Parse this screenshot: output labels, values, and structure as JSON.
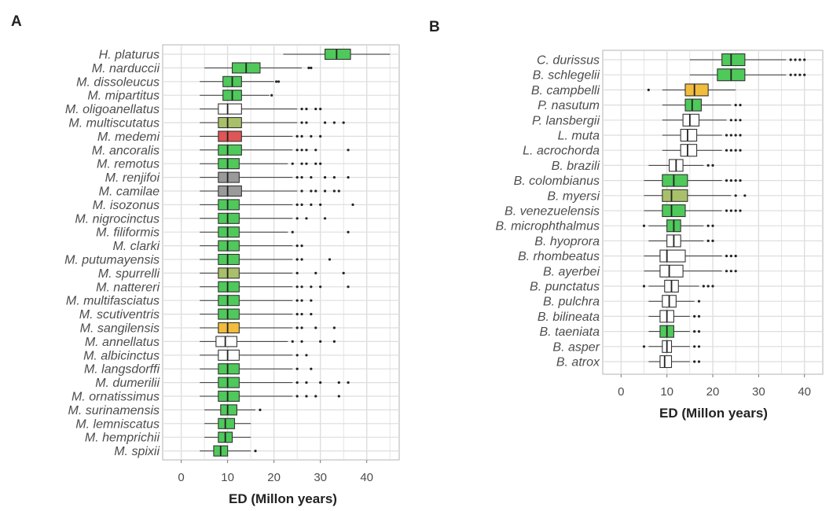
{
  "colors": {
    "green": "#4ec95a",
    "white": "#ffffff",
    "olive": "#a9c06a",
    "red": "#e05555",
    "gray": "#9a9a9a",
    "orange": "#f2bd3c",
    "grid": "#dedede",
    "border": "#b3b3b3",
    "text": "#4d4d4d"
  },
  "chart_data": [
    {
      "type": "boxplot",
      "panel_label": "A",
      "xlabel": "ED (Millon years)",
      "ylabel": "",
      "xlim": [
        -4,
        47
      ],
      "xticks": [
        0,
        10,
        20,
        30,
        40
      ],
      "grid": true,
      "species": [
        {
          "name": "H. platurus",
          "q1": 31,
          "median": 33.5,
          "q3": 36.5,
          "wlo": 22,
          "whi": 45,
          "outliers": [],
          "fill": "green"
        },
        {
          "name": "M. narduccii",
          "q1": 11,
          "median": 14,
          "q3": 17,
          "wlo": 5,
          "whi": 26,
          "outliers": [
            27.5,
            28
          ],
          "fill": "green"
        },
        {
          "name": "M. dissoleucus",
          "q1": 9,
          "median": 11,
          "q3": 13,
          "wlo": 4,
          "whi": 20,
          "outliers": [
            20.5,
            21
          ],
          "fill": "green"
        },
        {
          "name": "M. mipartitus",
          "q1": 9,
          "median": 11,
          "q3": 13,
          "wlo": 4,
          "whi": 19,
          "outliers": [
            19.5
          ],
          "fill": "green"
        },
        {
          "name": "M. oligoanellatus",
          "q1": 8,
          "median": 10,
          "q3": 13,
          "wlo": 4,
          "whi": 25,
          "outliers": [
            26,
            27,
            29,
            30
          ],
          "fill": "white"
        },
        {
          "name": "M. multiscutatus",
          "q1": 8,
          "median": 10,
          "q3": 13,
          "wlo": 4,
          "whi": 25,
          "outliers": [
            26,
            27,
            31,
            33,
            35
          ],
          "fill": "olive"
        },
        {
          "name": "M. medemi",
          "q1": 8,
          "median": 10,
          "q3": 13,
          "wlo": 4,
          "whi": 24,
          "outliers": [
            25,
            26,
            28,
            30
          ],
          "fill": "red"
        },
        {
          "name": "M. ancoralis",
          "q1": 8,
          "median": 10,
          "q3": 13,
          "wlo": 4,
          "whi": 24,
          "outliers": [
            25,
            26,
            27,
            29,
            36
          ],
          "fill": "green"
        },
        {
          "name": "M. remotus",
          "q1": 8,
          "median": 10,
          "q3": 12.5,
          "wlo": 4,
          "whi": 23,
          "outliers": [
            24,
            26,
            27,
            29,
            30
          ],
          "fill": "green"
        },
        {
          "name": "M. renjifoi",
          "q1": 8,
          "median": 10,
          "q3": 12.5,
          "wlo": 4,
          "whi": 24,
          "outliers": [
            25,
            26,
            28,
            31,
            33,
            36
          ],
          "fill": "gray"
        },
        {
          "name": "M. camilae",
          "q1": 8,
          "median": 10,
          "q3": 13,
          "wlo": 4,
          "whi": 25,
          "outliers": [
            26,
            28,
            29,
            31,
            33,
            34
          ],
          "fill": "gray"
        },
        {
          "name": "M. isozonus",
          "q1": 8,
          "median": 10,
          "q3": 12.5,
          "wlo": 4,
          "whi": 24,
          "outliers": [
            25,
            26,
            28,
            30,
            37
          ],
          "fill": "green"
        },
        {
          "name": "M. nigrocinctus",
          "q1": 8,
          "median": 10,
          "q3": 12.5,
          "wlo": 4,
          "whi": 24,
          "outliers": [
            25,
            27,
            31
          ],
          "fill": "green"
        },
        {
          "name": "M. filiformis",
          "q1": 8,
          "median": 10,
          "q3": 12.5,
          "wlo": 4,
          "whi": 23,
          "outliers": [
            24,
            36
          ],
          "fill": "green"
        },
        {
          "name": "M. clarki",
          "q1": 8,
          "median": 10,
          "q3": 12.5,
          "wlo": 4,
          "whi": 24,
          "outliers": [
            25,
            26
          ],
          "fill": "green"
        },
        {
          "name": "M. putumayensis",
          "q1": 8,
          "median": 10,
          "q3": 12.5,
          "wlo": 4,
          "whi": 24,
          "outliers": [
            25,
            26,
            32
          ],
          "fill": "green"
        },
        {
          "name": "M. spurrelli",
          "q1": 8,
          "median": 10,
          "q3": 12.5,
          "wlo": 4,
          "whi": 24,
          "outliers": [
            25,
            29,
            35
          ],
          "fill": "olive"
        },
        {
          "name": "M. nattereri",
          "q1": 8,
          "median": 10,
          "q3": 12.5,
          "wlo": 4,
          "whi": 24,
          "outliers": [
            25,
            26,
            28,
            30,
            36
          ],
          "fill": "green"
        },
        {
          "name": "M. multifasciatus",
          "q1": 8,
          "median": 10,
          "q3": 12.5,
          "wlo": 4,
          "whi": 24,
          "outliers": [
            25,
            26,
            28
          ],
          "fill": "green"
        },
        {
          "name": "M. scutiventris",
          "q1": 8,
          "median": 10,
          "q3": 12.5,
          "wlo": 4,
          "whi": 24,
          "outliers": [
            25,
            26,
            28
          ],
          "fill": "green"
        },
        {
          "name": "M. sangilensis",
          "q1": 8,
          "median": 10,
          "q3": 12.5,
          "wlo": 4,
          "whi": 24,
          "outliers": [
            25,
            26,
            29,
            33
          ],
          "fill": "orange"
        },
        {
          "name": "M. annellatus",
          "q1": 7.5,
          "median": 9.5,
          "q3": 12,
          "wlo": 4,
          "whi": 23,
          "outliers": [
            24,
            26,
            30,
            33
          ],
          "fill": "white"
        },
        {
          "name": "M. albicinctus",
          "q1": 8,
          "median": 10,
          "q3": 12.5,
          "wlo": 4,
          "whi": 24,
          "outliers": [
            25,
            27
          ],
          "fill": "white"
        },
        {
          "name": "M. langsdorffi",
          "q1": 8,
          "median": 10,
          "q3": 12.5,
          "wlo": 4,
          "whi": 24,
          "outliers": [
            25,
            28
          ],
          "fill": "green"
        },
        {
          "name": "M. dumerilii",
          "q1": 8,
          "median": 10,
          "q3": 12.5,
          "wlo": 4,
          "whi": 24,
          "outliers": [
            25,
            27,
            30,
            34,
            36
          ],
          "fill": "green"
        },
        {
          "name": "M. ornatissimus",
          "q1": 8,
          "median": 10,
          "q3": 12.5,
          "wlo": 4,
          "whi": 24,
          "outliers": [
            25,
            27,
            29,
            34
          ],
          "fill": "green"
        },
        {
          "name": "M. surinamensis",
          "q1": 8.5,
          "median": 10,
          "q3": 12,
          "wlo": 5,
          "whi": 16,
          "outliers": [
            17
          ],
          "fill": "green"
        },
        {
          "name": "M. lemniscatus",
          "q1": 8,
          "median": 9.5,
          "q3": 11.5,
          "wlo": 5,
          "whi": 15,
          "outliers": [],
          "fill": "green"
        },
        {
          "name": "M. hemprichii",
          "q1": 8,
          "median": 9.5,
          "q3": 11,
          "wlo": 5,
          "whi": 15,
          "outliers": [],
          "fill": "green"
        },
        {
          "name": "M. spixii",
          "q1": 7,
          "median": 8.5,
          "q3": 10,
          "wlo": 4,
          "whi": 15,
          "outliers": [
            16
          ],
          "fill": "green"
        }
      ]
    },
    {
      "type": "boxplot",
      "panel_label": "B",
      "xlabel": "ED (Millon years)",
      "ylabel": "",
      "xlim": [
        -4,
        44
      ],
      "xticks": [
        0,
        10,
        20,
        30,
        40
      ],
      "grid": true,
      "species": [
        {
          "name": "C. durissus",
          "q1": 22,
          "median": 24,
          "q3": 27,
          "wlo": 15,
          "whi": 36,
          "outliers": [
            37,
            38,
            39,
            40
          ],
          "fill": "green"
        },
        {
          "name": "B. schlegelii",
          "q1": 21,
          "median": 24,
          "q3": 27,
          "wlo": 15,
          "whi": 36,
          "outliers": [
            37,
            38,
            39,
            40
          ],
          "fill": "green"
        },
        {
          "name": "B. campbelli",
          "q1": 14,
          "median": 16,
          "q3": 19,
          "wlo": 9,
          "whi": 25,
          "outliers": [
            6
          ],
          "fill": "orange"
        },
        {
          "name": "P. nasutum",
          "q1": 14,
          "median": 15.5,
          "q3": 17.5,
          "wlo": 9,
          "whi": 24,
          "outliers": [
            25,
            26
          ],
          "fill": "green"
        },
        {
          "name": "P. lansbergii",
          "q1": 13.5,
          "median": 15,
          "q3": 17,
          "wlo": 9,
          "whi": 23,
          "outliers": [
            24,
            25,
            26
          ],
          "fill": "white"
        },
        {
          "name": "L. muta",
          "q1": 13,
          "median": 14.5,
          "q3": 16.5,
          "wlo": 9,
          "whi": 22,
          "outliers": [
            23,
            24,
            25,
            26
          ],
          "fill": "white"
        },
        {
          "name": "L. acrochorda",
          "q1": 13,
          "median": 14.5,
          "q3": 16.5,
          "wlo": 9,
          "whi": 22,
          "outliers": [
            23,
            24,
            25,
            26
          ],
          "fill": "white"
        },
        {
          "name": "B. brazili",
          "q1": 10.5,
          "median": 12,
          "q3": 13.5,
          "wlo": 6,
          "whi": 18,
          "outliers": [
            19,
            20
          ],
          "fill": "white"
        },
        {
          "name": "B. colombianus",
          "q1": 9,
          "median": 11.5,
          "q3": 14.5,
          "wlo": 5,
          "whi": 22,
          "outliers": [
            23,
            24,
            25,
            26
          ],
          "fill": "green"
        },
        {
          "name": "B. myersi",
          "q1": 9,
          "median": 11,
          "q3": 14.5,
          "wlo": 5,
          "whi": 24,
          "outliers": [
            25,
            27
          ],
          "fill": "olive"
        },
        {
          "name": "B. venezuelensis",
          "q1": 9,
          "median": 11,
          "q3": 14,
          "wlo": 5,
          "whi": 22,
          "outliers": [
            23,
            24,
            25,
            26
          ],
          "fill": "green"
        },
        {
          "name": "B. microphthalmus",
          "q1": 10,
          "median": 11.5,
          "q3": 13,
          "wlo": 6,
          "whi": 18,
          "outliers": [
            5,
            19,
            20
          ],
          "fill": "green"
        },
        {
          "name": "B. hyoprora",
          "q1": 10,
          "median": 11.5,
          "q3": 13,
          "wlo": 6,
          "whi": 18,
          "outliers": [
            19,
            20
          ],
          "fill": "white"
        },
        {
          "name": "B. rhombeatus",
          "q1": 8.5,
          "median": 10,
          "q3": 14,
          "wlo": 5,
          "whi": 22,
          "outliers": [
            23,
            24,
            25
          ],
          "fill": "white"
        },
        {
          "name": "B. ayerbei",
          "q1": 8.5,
          "median": 10.5,
          "q3": 13.5,
          "wlo": 5,
          "whi": 22,
          "outliers": [
            23,
            24,
            25
          ],
          "fill": "white"
        },
        {
          "name": "B. punctatus",
          "q1": 9.5,
          "median": 11,
          "q3": 12.5,
          "wlo": 6,
          "whi": 17,
          "outliers": [
            5,
            18,
            19,
            20
          ],
          "fill": "white"
        },
        {
          "name": "B. pulchra",
          "q1": 9,
          "median": 10.5,
          "q3": 12,
          "wlo": 6,
          "whi": 16,
          "outliers": [
            17
          ],
          "fill": "white"
        },
        {
          "name": "B. bilineata",
          "q1": 8.5,
          "median": 10,
          "q3": 11.5,
          "wlo": 6,
          "whi": 15,
          "outliers": [
            16,
            17
          ],
          "fill": "white"
        },
        {
          "name": "B. taeniata",
          "q1": 8.5,
          "median": 10,
          "q3": 11.5,
          "wlo": 6,
          "whi": 15,
          "outliers": [
            16,
            17
          ],
          "fill": "green"
        },
        {
          "name": "B. asper",
          "q1": 9,
          "median": 10,
          "q3": 11,
          "wlo": 6,
          "whi": 15,
          "outliers": [
            5,
            16,
            17
          ],
          "fill": "white"
        },
        {
          "name": "B. atrox",
          "q1": 8.5,
          "median": 9.5,
          "q3": 11,
          "wlo": 6,
          "whi": 15,
          "outliers": [
            16,
            17
          ],
          "fill": "white"
        }
      ]
    }
  ]
}
